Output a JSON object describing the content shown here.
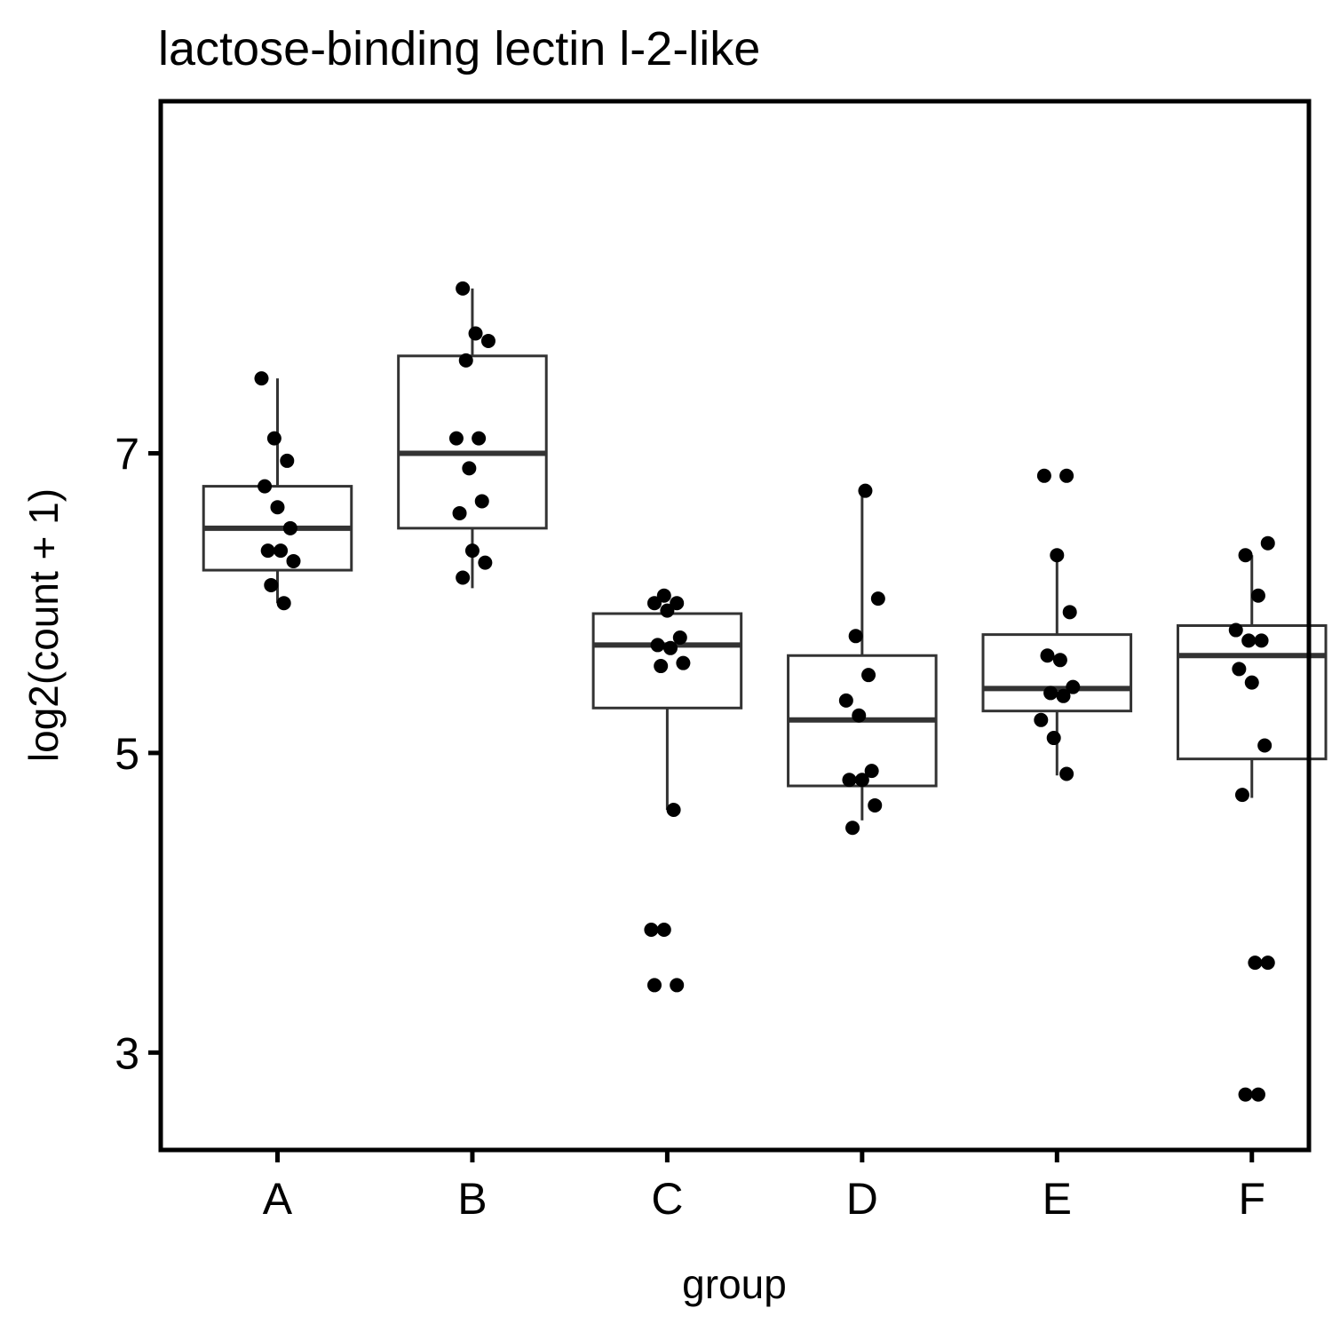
{
  "chart_data": {
    "type": "boxplot",
    "title": "lactose-binding lectin l-2-like",
    "xlabel": "group",
    "ylabel": "log2(count + 1)",
    "ylim": [
      2.35,
      9.35
    ],
    "yticks": [
      3,
      5,
      7
    ],
    "grid": false,
    "legend": "none",
    "colors": {
      "box_line": "#333333",
      "point": "#000000",
      "axis": "#000000"
    },
    "categories": [
      "A",
      "B",
      "C",
      "D",
      "E",
      "F"
    ],
    "boxes": [
      {
        "group": "A",
        "whisker_low": 6.0,
        "q1": 6.22,
        "median": 6.5,
        "q3": 6.78,
        "whisker_high": 7.5
      },
      {
        "group": "B",
        "whisker_low": 6.1,
        "q1": 6.5,
        "median": 7.0,
        "q3": 7.65,
        "whisker_high": 8.1
      },
      {
        "group": "C",
        "whisker_low": 4.62,
        "q1": 5.3,
        "median": 5.72,
        "q3": 5.93,
        "whisker_high": 5.98
      },
      {
        "group": "D",
        "whisker_low": 4.55,
        "q1": 4.78,
        "median": 5.22,
        "q3": 5.65,
        "whisker_high": 6.75
      },
      {
        "group": "E",
        "whisker_low": 4.85,
        "q1": 5.28,
        "median": 5.43,
        "q3": 5.79,
        "whisker_high": 6.3
      },
      {
        "group": "F",
        "whisker_low": 4.7,
        "q1": 4.96,
        "median": 5.65,
        "q3": 5.85,
        "whisker_high": 6.32
      }
    ],
    "points": [
      {
        "group": "A",
        "values": [
          7.5,
          7.1,
          6.95,
          6.78,
          6.64,
          6.5,
          6.35,
          6.35,
          6.28,
          6.12,
          6.0
        ]
      },
      {
        "group": "B",
        "values": [
          8.1,
          7.8,
          7.75,
          7.62,
          7.1,
          7.1,
          6.9,
          6.68,
          6.6,
          6.35,
          6.27,
          6.17
        ]
      },
      {
        "group": "C",
        "values": [
          6.05,
          6.0,
          6.0,
          5.95,
          5.77,
          5.72,
          5.7,
          5.6,
          5.58,
          4.62,
          3.82,
          3.82,
          3.45,
          3.45
        ]
      },
      {
        "group": "D",
        "values": [
          6.75,
          6.03,
          5.78,
          5.52,
          5.35,
          5.25,
          4.88,
          4.82,
          4.82,
          4.65,
          4.5
        ]
      },
      {
        "group": "E",
        "values": [
          6.85,
          6.85,
          6.32,
          5.94,
          5.65,
          5.62,
          5.44,
          5.4,
          5.38,
          5.22,
          5.1,
          4.86
        ]
      },
      {
        "group": "F",
        "values": [
          6.4,
          6.32,
          6.05,
          5.82,
          5.75,
          5.75,
          5.56,
          5.47,
          5.05,
          4.72,
          3.6,
          3.6,
          2.72,
          2.72
        ]
      }
    ]
  }
}
